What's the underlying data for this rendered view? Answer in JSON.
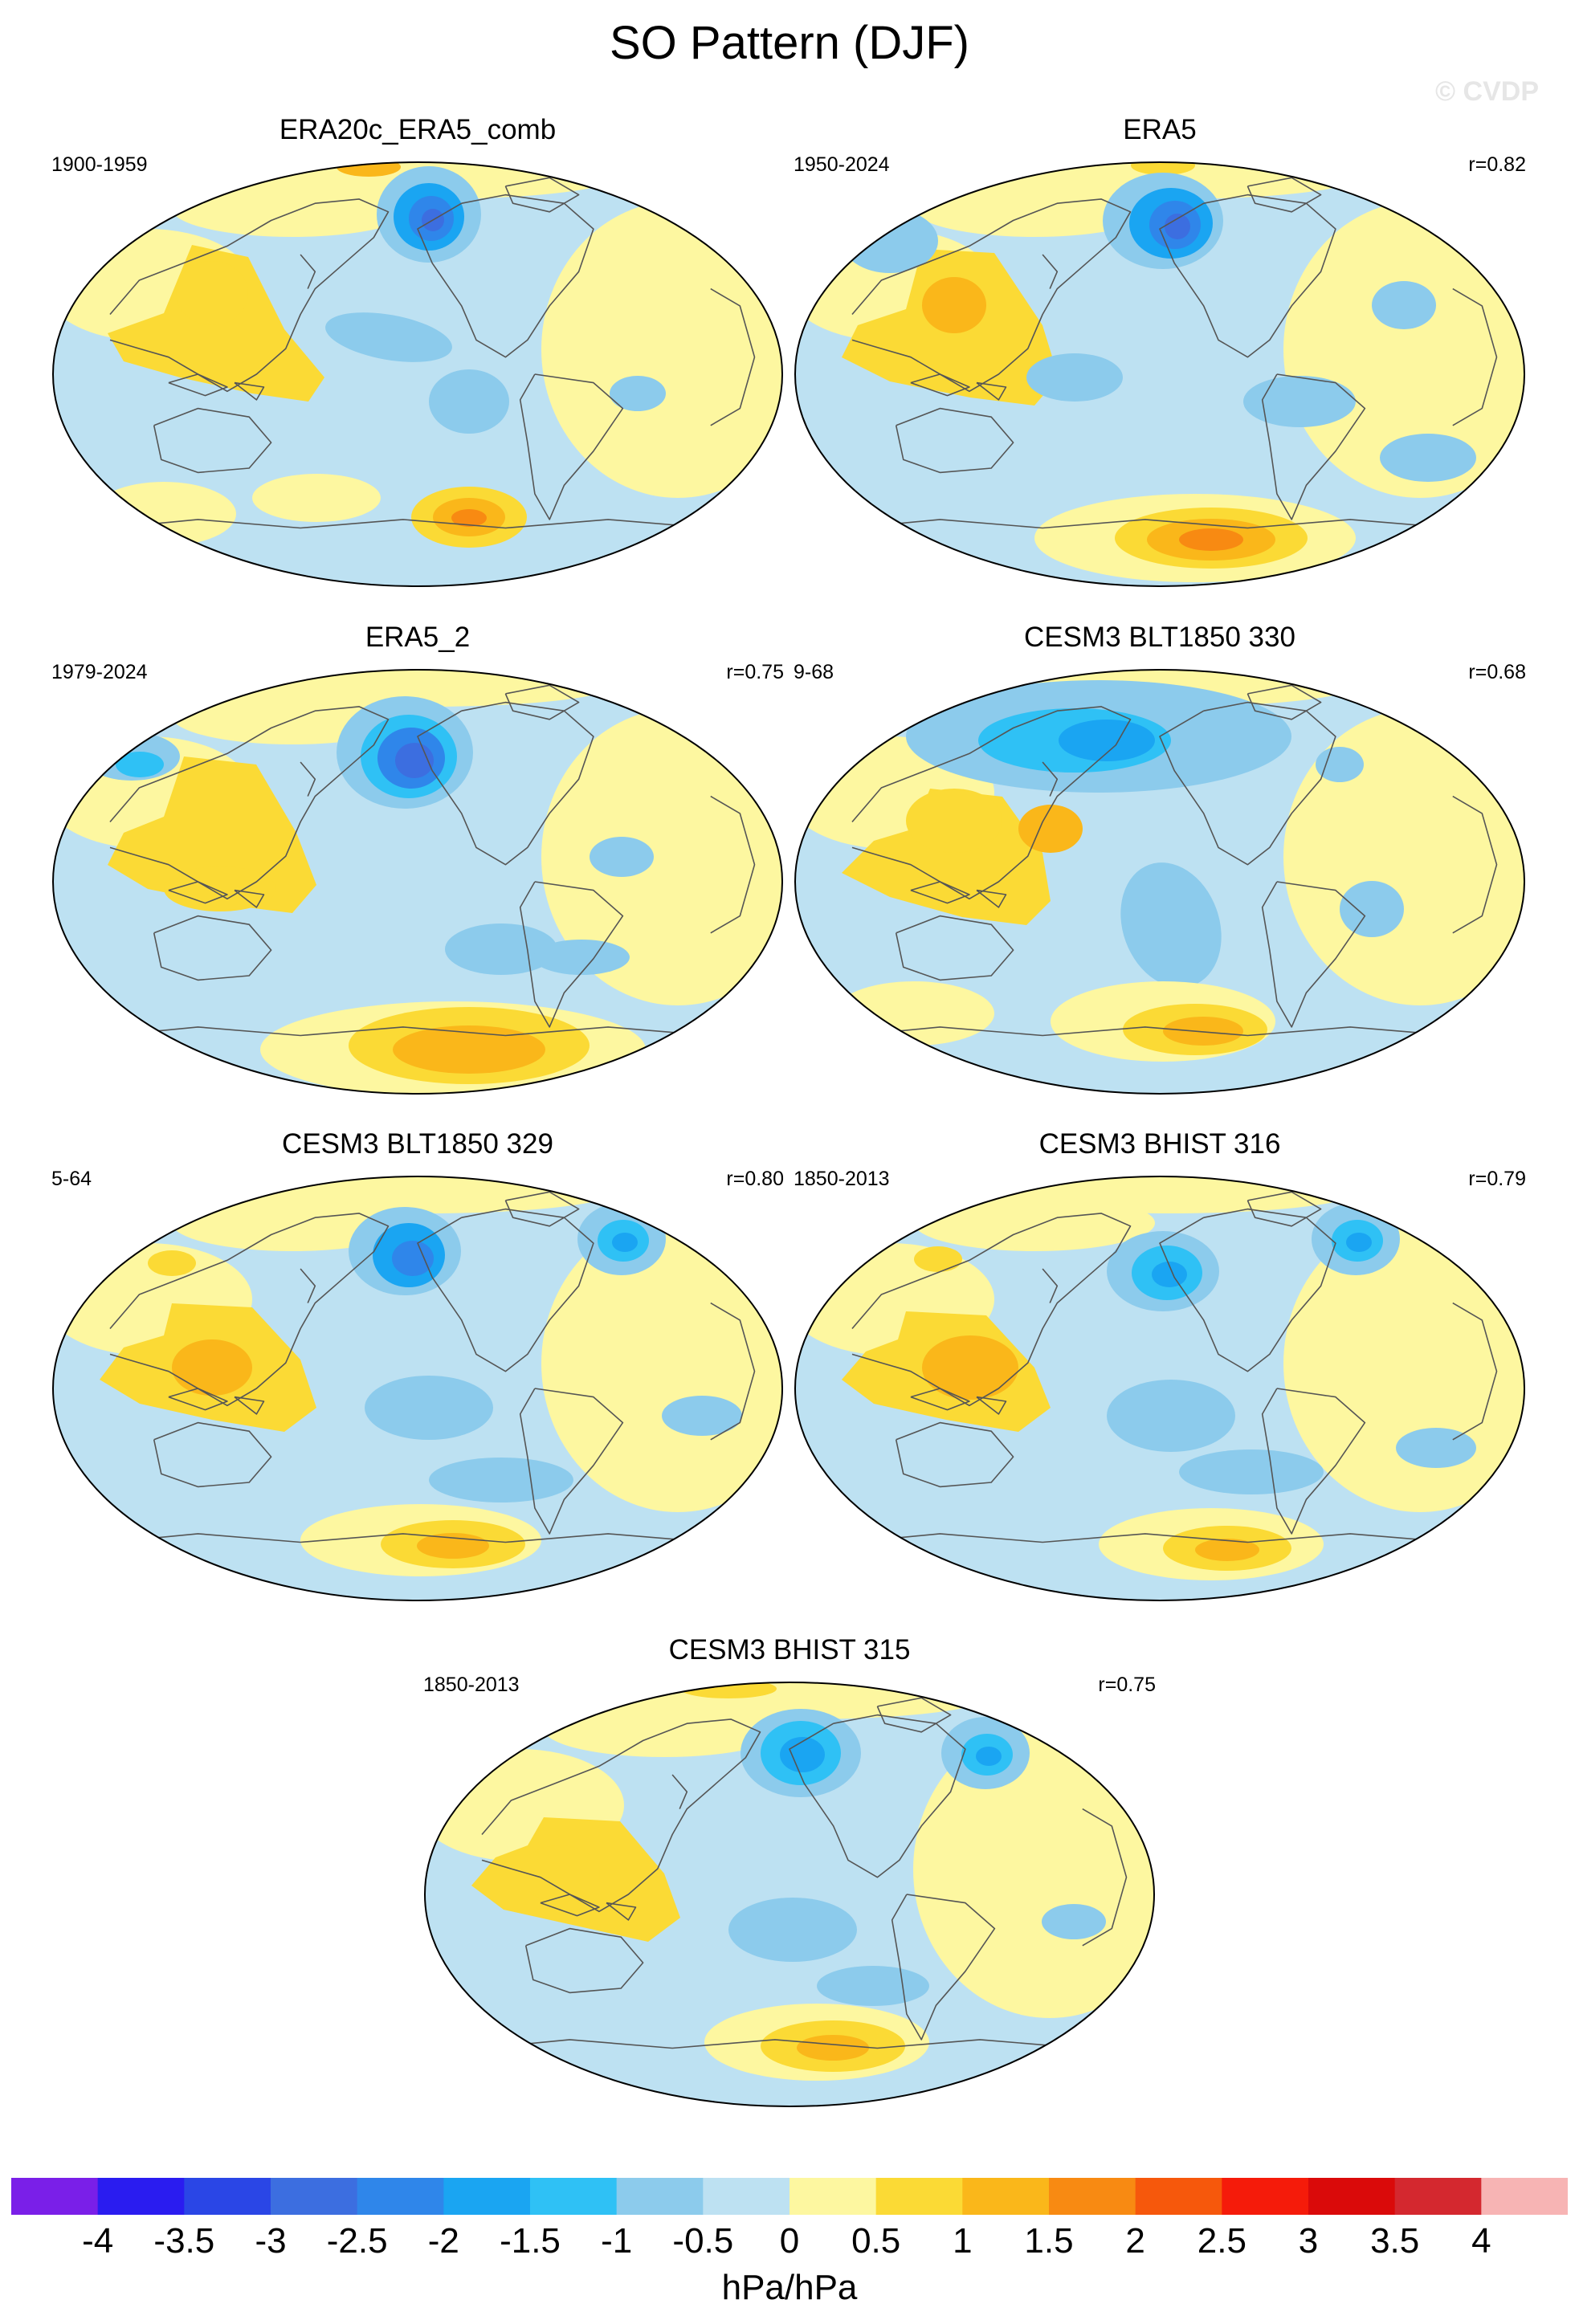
{
  "title": "SO Pattern (DJF)",
  "watermark": "© CVDP",
  "colors": {
    "ocean_background": "#bde1f2",
    "land_outline": "#555555",
    "scale": [
      "#7a1fe8",
      "#2a1cf0",
      "#2a46e6",
      "#3c6ee0",
      "#2f86ea",
      "#1aa5f2",
      "#2fc1f5",
      "#8ccbec",
      "#bde1f2",
      "#fdf7a0",
      "#fbda35",
      "#fab71a",
      "#f88a12",
      "#f6580c",
      "#f51b0a",
      "#da0a0a",
      "#d4282f",
      "#f7b4b4"
    ]
  },
  "panels": [
    {
      "title": "ERA20c_ERA5_comb",
      "years": "1900-1959",
      "corr": "",
      "pattern": 0
    },
    {
      "title": "ERA5",
      "years": "1950-2024",
      "corr": "r=0.82",
      "pattern": 1
    },
    {
      "title": "ERA5_2",
      "years": "1979-2024",
      "corr": "r=0.75",
      "pattern": 2
    },
    {
      "title": "CESM3 BLT1850 330",
      "years": "9-68",
      "corr": "r=0.68",
      "pattern": 3
    },
    {
      "title": "CESM3 BLT1850 329",
      "years": "5-64",
      "corr": "r=0.80",
      "pattern": 4
    },
    {
      "title": "CESM3 BHIST 316",
      "years": "1850-2013",
      "corr": "r=0.79",
      "pattern": 5
    },
    {
      "title": "CESM3 BHIST 315",
      "years": "1850-2013",
      "corr": "r=0.75",
      "pattern": 6
    }
  ],
  "colorbar": {
    "labels": [
      "-4",
      "-3.5",
      "-3",
      "-2.5",
      "-2",
      "-1.5",
      "-1",
      "-0.5",
      "0",
      "0.5",
      "1",
      "1.5",
      "2",
      "2.5",
      "3",
      "3.5",
      "4"
    ],
    "units": "hPa/hPa"
  }
}
